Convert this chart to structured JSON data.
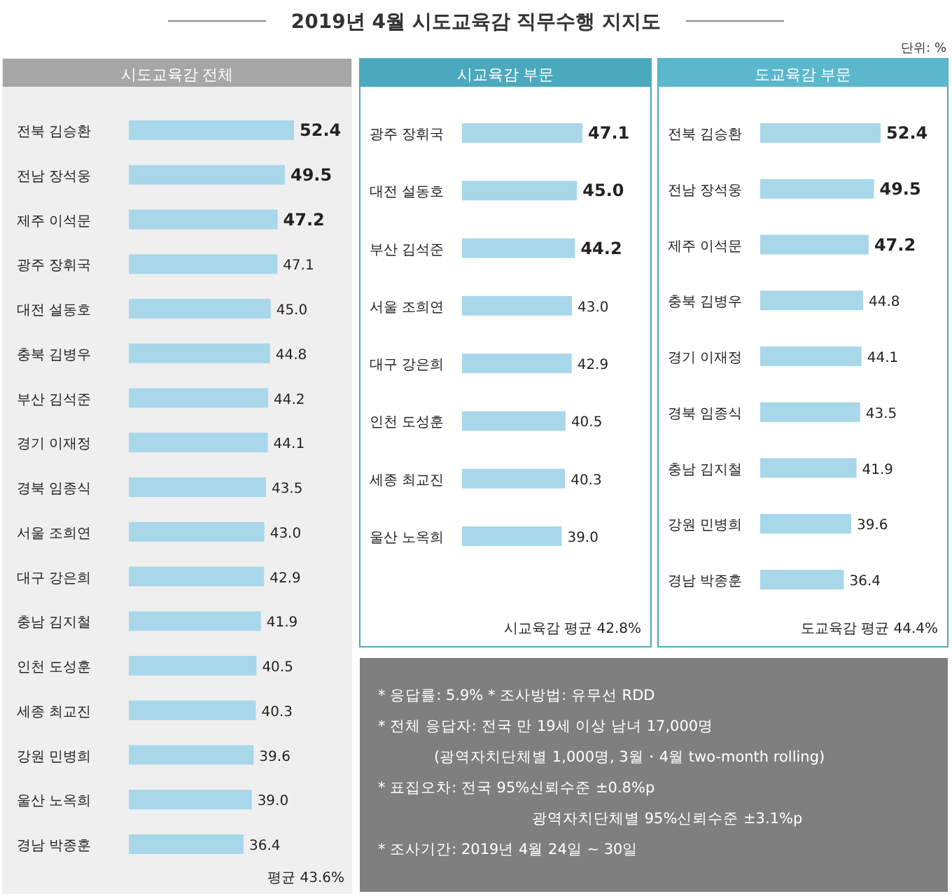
{
  "chart_data": [
    {
      "type": "other",
      "title": "2019년 4월 시도교육감 직무수행 지지도",
      "annotations": [
        "단위: %"
      ]
    },
    {
      "type": "bar",
      "orientation": "horizontal",
      "title": "시도교육감 전체",
      "color": "#a8d7ea",
      "categories": [
        "전북 김승환",
        "전남 장석웅",
        "제주 이석문",
        "광주 장휘국",
        "대전 설동호",
        "충북 김병우",
        "부산 김석준",
        "경기 이재정",
        "경북 임종식",
        "서울 조희연",
        "대구 강은희",
        "충남 김지철",
        "인천 도성훈",
        "세종 최교진",
        "강원 민병희",
        "울산 노옥희",
        "경남 박종훈"
      ],
      "values": [
        52.4,
        49.5,
        47.2,
        47.1,
        45.0,
        44.8,
        44.2,
        44.1,
        43.5,
        43.0,
        42.9,
        41.9,
        40.5,
        40.3,
        39.6,
        39.0,
        36.4
      ],
      "value_labels": [
        "52.4",
        "49.5",
        "47.2",
        "47.1",
        "45.0",
        "44.8",
        "44.2",
        "44.1",
        "43.5",
        "43.0",
        "42.9",
        "41.9",
        "40.5",
        "40.3",
        "39.6",
        "39.0",
        "36.4"
      ],
      "annotations": [
        "평균 43.6%"
      ]
    },
    {
      "type": "bar",
      "orientation": "horizontal",
      "title": "시교육감 부문",
      "color": "#a8d7ea",
      "categories": [
        "광주 장휘국",
        "대전 설동호",
        "부산 김석준",
        "서울 조희연",
        "대구 강은희",
        "인천 도성훈",
        "세종 최교진",
        "울산 노옥희"
      ],
      "values": [
        47.1,
        45.0,
        44.2,
        43.0,
        42.9,
        40.5,
        40.3,
        39.0
      ],
      "value_labels": [
        "47.1",
        "45.0",
        "44.2",
        "43.0",
        "42.9",
        "40.5",
        "40.3",
        "39.0"
      ],
      "annotations": [
        "시교육감 평균 42.8%"
      ]
    },
    {
      "type": "bar",
      "orientation": "horizontal",
      "title": "도교육감 부문",
      "color": "#a8d7ea",
      "categories": [
        "전북 김승환",
        "전남 장석웅",
        "제주 이석문",
        "충북 김병우",
        "경기 이재정",
        "경북 임종식",
        "충남 김지철",
        "강원 민병희",
        "경남 박종훈"
      ],
      "values": [
        52.4,
        49.5,
        47.2,
        44.8,
        44.1,
        43.5,
        41.9,
        39.6,
        36.4
      ],
      "value_labels": [
        "52.4",
        "49.5",
        "47.2",
        "44.8",
        "44.1",
        "43.5",
        "41.9",
        "39.6",
        "36.4"
      ],
      "annotations": [
        "도교육감 평균 44.4%"
      ]
    },
    {
      "type": "other",
      "annotations": [
        "* 응답률: 5.9% * 조사방법: 유무선 RDD",
        "* 전체 응답자: 전국 만 19세 이상 남녀 17,000명",
        "(광역자치단체별 1,000명, 3월・4월 two-month rolling)",
        "* 표집오차: 전국 95%신뢰수준 ±0.8%p",
        "광역자치단체별 95%신뢰수준 ±3.1%p",
        "* 조사기간: 2019년 4월 24일 ~ 30일"
      ]
    }
  ]
}
